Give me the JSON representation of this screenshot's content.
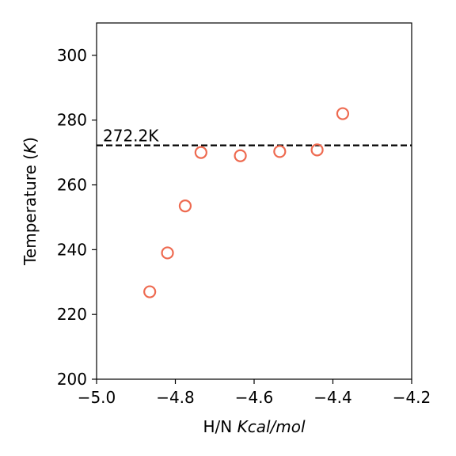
{
  "chart_data": {
    "type": "scatter",
    "xlabel_plain": "H/N ",
    "xlabel_italic": "Kcal/mol",
    "ylabel_plain": "Temperature (",
    "ylabel_italic": "K",
    "ylabel_close": ")",
    "xlim": [
      -5.0,
      -4.2
    ],
    "ylim": [
      200,
      310
    ],
    "xticks": [
      -5.0,
      -4.8,
      -4.6,
      -4.4,
      -4.2
    ],
    "xtick_labels": [
      "−5.0",
      "−4.8",
      "−4.6",
      "−4.4",
      "−4.2"
    ],
    "yticks": [
      200,
      220,
      240,
      260,
      280,
      300
    ],
    "ytick_labels": [
      "200",
      "220",
      "240",
      "260",
      "280",
      "300"
    ],
    "grid": false,
    "series": [
      {
        "marker": "open-circle",
        "color": "#ee6a50",
        "x": [
          -4.865,
          -4.82,
          -4.775,
          -4.735,
          -4.635,
          -4.535,
          -4.44,
          -4.375
        ],
        "y": [
          227.0,
          239.0,
          253.5,
          270.0,
          269.0,
          270.3,
          270.8,
          282.0
        ]
      }
    ],
    "reference_line": {
      "y": 272.2,
      "style": "dashed",
      "color": "#000000",
      "label": "272.2K"
    }
  }
}
